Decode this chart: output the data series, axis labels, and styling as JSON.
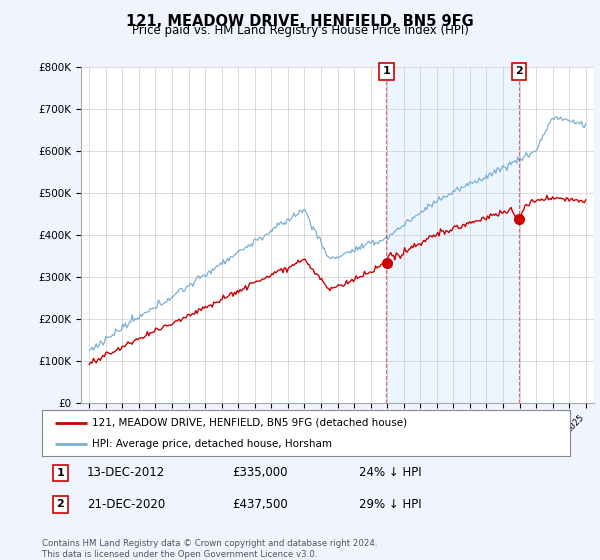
{
  "title": "121, MEADOW DRIVE, HENFIELD, BN5 9FG",
  "subtitle": "Price paid vs. HM Land Registry's House Price Index (HPI)",
  "legend_line1": "121, MEADOW DRIVE, HENFIELD, BN5 9FG (detached house)",
  "legend_line2": "HPI: Average price, detached house, Horsham",
  "annotation1_date": "13-DEC-2012",
  "annotation1_price": "£335,000",
  "annotation1_hpi": "24% ↓ HPI",
  "annotation2_date": "21-DEC-2020",
  "annotation2_price": "£437,500",
  "annotation2_hpi": "29% ↓ HPI",
  "footer": "Contains HM Land Registry data © Crown copyright and database right 2024.\nThis data is licensed under the Open Government Licence v3.0.",
  "price_color": "#cc0000",
  "hpi_color": "#7ab0d4",
  "hpi_fill_color": "#ddeeff",
  "background_color": "#f0f4ff",
  "plot_bg_color": "#ffffff",
  "annotation_color": "#cc0000",
  "vline_color": "#cc3333",
  "ylim": [
    0,
    800000
  ],
  "yticks": [
    0,
    100000,
    200000,
    300000,
    400000,
    500000,
    600000,
    700000,
    800000
  ],
  "ytick_labels": [
    "£0",
    "£100K",
    "£200K",
    "£300K",
    "£400K",
    "£500K",
    "£600K",
    "£700K",
    "£800K"
  ],
  "sale1_x": 2012.96,
  "sale1_y": 335000,
  "sale2_x": 2020.96,
  "sale2_y": 437500,
  "xmin": 1994.5,
  "xmax": 2025.5
}
